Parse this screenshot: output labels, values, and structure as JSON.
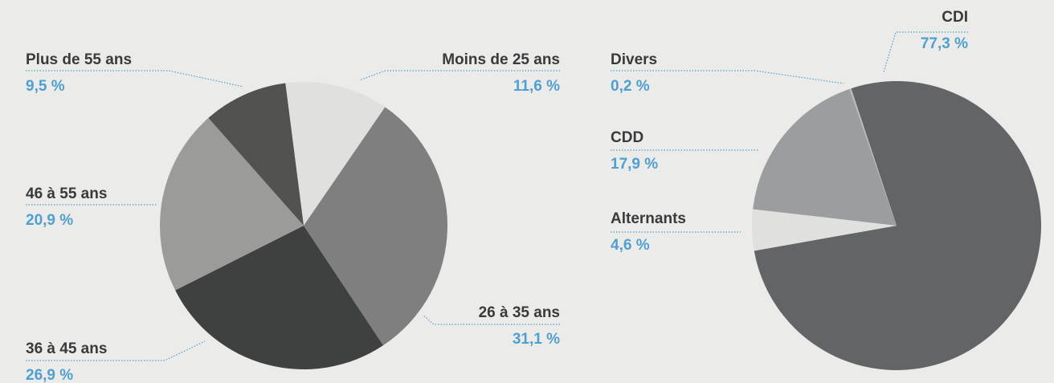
{
  "chart_data": [
    {
      "type": "pie",
      "categories": [
        "Moins de 25 ans",
        "26 à 35 ans",
        "36 à 45 ans",
        "46 à 55 ans",
        "Plus de 55 ans"
      ],
      "values": [
        11.6,
        31.1,
        26.9,
        20.9,
        9.5
      ],
      "value_labels": [
        "11,6 %",
        "31,1 %",
        "26,9 %",
        "20,9 %",
        "9,5 %"
      ],
      "colors": [
        "#e0e0df",
        "#7f7f7f",
        "#3f4040",
        "#9b9b9a",
        "#525250"
      ]
    },
    {
      "type": "pie",
      "categories": [
        "CDI",
        "Alternants",
        "CDD",
        "Divers"
      ],
      "values": [
        77.3,
        4.6,
        17.9,
        0.2
      ],
      "value_labels": [
        "77,3 %",
        "4,6 %",
        "17,9 %",
        "0,2 %"
      ],
      "colors": [
        "#636466",
        "#e0e0df",
        "#9c9d9f",
        "#b8b8b8"
      ]
    }
  ]
}
